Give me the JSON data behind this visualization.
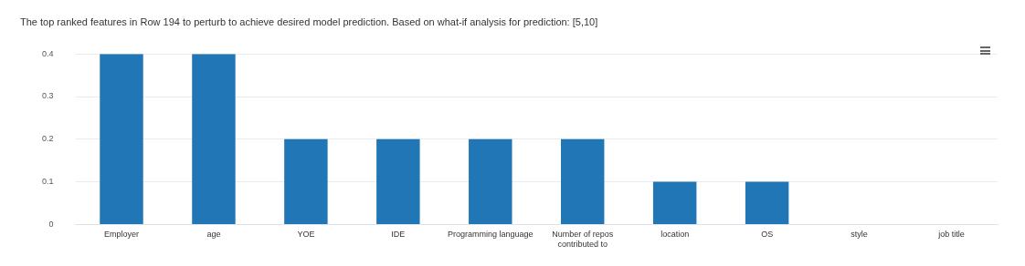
{
  "chart_data": {
    "type": "bar",
    "title": "The top ranked features in Row 194 to perturb to achieve desired model prediction. Based on what-if analysis for prediction: [5,10]",
    "categories": [
      "Employer",
      "age",
      "YOE",
      "IDE",
      "Programming language",
      "Number of repos contributed to",
      "location",
      "OS",
      "style",
      "job title"
    ],
    "values": [
      0.4,
      0.4,
      0.2,
      0.2,
      0.2,
      0.2,
      0.1,
      0.1,
      0,
      0
    ],
    "color": "#2176b5",
    "ylim": [
      0,
      0.4
    ],
    "yticks": [
      0,
      0.1,
      0.2,
      0.3,
      0.4
    ],
    "grid": "y"
  }
}
